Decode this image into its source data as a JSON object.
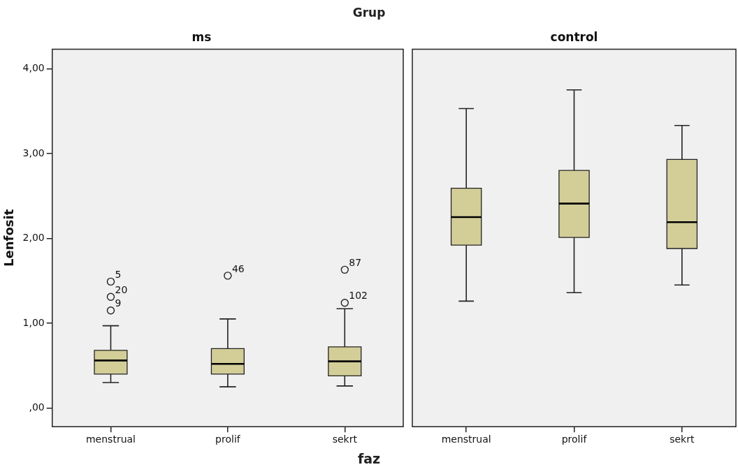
{
  "chart_data": [
    {
      "type": "box",
      "title": "Grup",
      "subtitle": "ms",
      "xlabel": "faz",
      "ylabel": "Lenfosit",
      "categories": [
        "menstrual",
        "prolif",
        "sekrt"
      ],
      "color": "#d3ce98",
      "boxes": [
        {
          "low": 0.3,
          "q1": 0.4,
          "median": 0.56,
          "q3": 0.68,
          "high": 0.97,
          "outliers": [
            1.49,
            1.31,
            1.15
          ]
        },
        {
          "low": 0.25,
          "q1": 0.4,
          "median": 0.52,
          "q3": 0.7,
          "high": 1.05,
          "outliers": [
            1.56
          ]
        },
        {
          "low": 0.26,
          "q1": 0.38,
          "median": 0.55,
          "q3": 0.72,
          "high": 1.17,
          "outliers": [
            1.63,
            1.24
          ]
        }
      ],
      "ylim": [
        -0.22,
        4.23
      ],
      "yticks": [
        {
          "value": 0,
          "label": ",00"
        },
        {
          "value": 1,
          "label": "1,00"
        },
        {
          "value": 2,
          "label": "2,00"
        },
        {
          "value": 3,
          "label": "3,00"
        },
        {
          "value": 4,
          "label": "4,00"
        }
      ],
      "annotations": [
        "5",
        "20",
        "9",
        "46",
        "87",
        "102"
      ]
    },
    {
      "type": "box",
      "subtitle": "control",
      "categories": [
        "menstrual",
        "prolif",
        "sekrt"
      ],
      "color": "#d3ce98",
      "boxes": [
        {
          "low": 1.26,
          "q1": 1.92,
          "median": 2.25,
          "q3": 2.59,
          "high": 3.53
        },
        {
          "low": 1.36,
          "q1": 2.01,
          "median": 2.41,
          "q3": 2.8,
          "high": 3.75
        },
        {
          "low": 1.45,
          "q1": 1.88,
          "median": 2.19,
          "q3": 2.93,
          "high": 3.33
        }
      ],
      "ylim": [
        -0.22,
        4.23
      ],
      "tick_labels": "x"
    }
  ]
}
